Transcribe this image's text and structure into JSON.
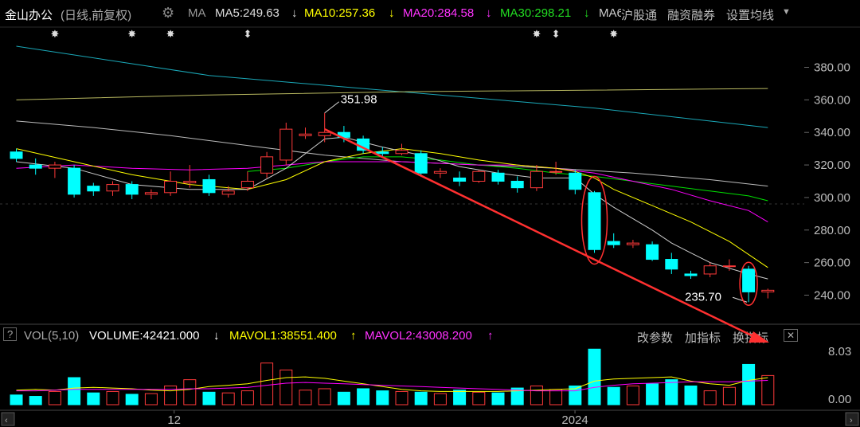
{
  "header": {
    "stock_name": "金山办公",
    "mode": "(日线,前复权)",
    "settings_icon": "gear-icon",
    "ma_prefix": "MA",
    "ma5": "MA5:249.63",
    "ma10": "MA10:257.36",
    "ma20": "MA20:284.58",
    "ma30": "MA30:298.21",
    "ma60": "MA6",
    "ma_arrow": "↓",
    "btn_hgt": "沪股通",
    "btn_margin": "融资融券",
    "btn_ma_settings": "设置均线",
    "dropdown_icon": "caret-down-icon"
  },
  "vol_header": {
    "help": "?",
    "label": "VOL(5,10)",
    "volume": "VOLUME:42421.000",
    "volume_arrow": "↓",
    "mavol1": "MAVOL1:38551.400",
    "mavol1_arrow": "↑",
    "mavol2": "MAVOL2:43008.200",
    "mavol2_arrow": "↑",
    "btn_params": "改参数",
    "btn_add": "加指标",
    "btn_switch": "换指标",
    "close": "✕"
  },
  "annotations": {
    "high_label": "351.98",
    "low_label": "235.70"
  },
  "x_axis": {
    "labels": [
      "12",
      "2024"
    ]
  },
  "vol_axis": {
    "top": "8.03",
    "bottom": "0.00"
  },
  "colors": {
    "up": "#ff3a3a",
    "down": "#00ffff",
    "ma5": "#cccccc",
    "ma10": "#ffff00",
    "ma20": "#ff00ff",
    "ma30": "#00e000",
    "ma60": "#20b0c0",
    "trend": "#ff3030"
  },
  "chart_data": {
    "type": "candlestick",
    "y_ticks": [
      240,
      260,
      280,
      300,
      320,
      340,
      360,
      380
    ],
    "ylim": [
      228,
      392
    ],
    "candles": [
      {
        "o": 328,
        "c": 324,
        "h": 330,
        "l": 322
      },
      {
        "o": 320,
        "c": 318,
        "h": 324,
        "l": 314
      },
      {
        "o": 318,
        "c": 320,
        "h": 322,
        "l": 312
      },
      {
        "o": 318,
        "c": 302,
        "h": 320,
        "l": 300
      },
      {
        "o": 307,
        "c": 304,
        "h": 309,
        "l": 301
      },
      {
        "o": 304,
        "c": 308,
        "h": 310,
        "l": 301
      },
      {
        "o": 308,
        "c": 302,
        "h": 310,
        "l": 299
      },
      {
        "o": 302,
        "c": 303,
        "h": 305,
        "l": 299
      },
      {
        "o": 303,
        "c": 310,
        "h": 316,
        "l": 301
      },
      {
        "o": 309,
        "c": 310,
        "h": 320,
        "l": 306
      },
      {
        "o": 311,
        "c": 303,
        "h": 314,
        "l": 301
      },
      {
        "o": 302,
        "c": 304,
        "h": 307,
        "l": 300
      },
      {
        "o": 306,
        "c": 310,
        "h": 316,
        "l": 304
      },
      {
        "o": 315,
        "c": 325,
        "h": 328,
        "l": 312
      },
      {
        "o": 323,
        "c": 342,
        "h": 346,
        "l": 320
      },
      {
        "o": 338,
        "c": 339,
        "h": 343,
        "l": 336
      },
      {
        "o": 338,
        "c": 340,
        "h": 351.98,
        "l": 334
      },
      {
        "o": 340,
        "c": 337,
        "h": 344,
        "l": 334
      },
      {
        "o": 336,
        "c": 329,
        "h": 338,
        "l": 327
      },
      {
        "o": 328,
        "c": 327,
        "h": 331,
        "l": 325
      },
      {
        "o": 327,
        "c": 329,
        "h": 333,
        "l": 326
      },
      {
        "o": 327,
        "c": 315,
        "h": 329,
        "l": 313
      },
      {
        "o": 315,
        "c": 316,
        "h": 318,
        "l": 312
      },
      {
        "o": 312,
        "c": 310,
        "h": 316,
        "l": 307
      },
      {
        "o": 310,
        "c": 316,
        "h": 317,
        "l": 309
      },
      {
        "o": 315,
        "c": 310,
        "h": 317,
        "l": 308
      },
      {
        "o": 310,
        "c": 306,
        "h": 313,
        "l": 303
      },
      {
        "o": 306,
        "c": 316,
        "h": 320,
        "l": 304
      },
      {
        "o": 316,
        "c": 316,
        "h": 322,
        "l": 314
      },
      {
        "o": 315,
        "c": 305,
        "h": 317,
        "l": 302
      },
      {
        "o": 303,
        "c": 268,
        "h": 304,
        "l": 266
      },
      {
        "o": 273,
        "c": 271,
        "h": 278,
        "l": 269
      },
      {
        "o": 271,
        "c": 272,
        "h": 274,
        "l": 269
      },
      {
        "o": 271,
        "c": 262,
        "h": 273,
        "l": 261
      },
      {
        "o": 262,
        "c": 256,
        "h": 266,
        "l": 253
      },
      {
        "o": 253,
        "c": 252,
        "h": 255,
        "l": 250
      },
      {
        "o": 253,
        "c": 258,
        "h": 260,
        "l": 251
      },
      {
        "o": 258,
        "c": 258,
        "h": 262,
        "l": 255
      },
      {
        "o": 256,
        "c": 242,
        "h": 258,
        "l": 235.7
      },
      {
        "o": 242,
        "c": 243,
        "h": 244,
        "l": 238
      }
    ],
    "volume": [
      1.4,
      1.2,
      1.9,
      3.9,
      1.7,
      1.9,
      1.5,
      1.6,
      2.7,
      3.6,
      1.8,
      1.7,
      2.0,
      6.0,
      5.0,
      2.1,
      2.3,
      1.8,
      2.3,
      2.0,
      1.9,
      1.8,
      1.6,
      2.1,
      1.8,
      1.7,
      2.4,
      2.7,
      2.2,
      2.7,
      8.0,
      2.5,
      2.7,
      3.0,
      3.6,
      2.7,
      2.0,
      2.5,
      5.8,
      4.2
    ],
    "ma5": [
      [
        0,
        322
      ],
      [
        3,
        318
      ],
      [
        6,
        308
      ],
      [
        9,
        305
      ],
      [
        12,
        305
      ],
      [
        14,
        318
      ],
      [
        16,
        336
      ],
      [
        17,
        337
      ],
      [
        19,
        331
      ],
      [
        21,
        326
      ],
      [
        23,
        319
      ],
      [
        25,
        315
      ],
      [
        27,
        312
      ],
      [
        29,
        312
      ],
      [
        30,
        302
      ],
      [
        31,
        294
      ],
      [
        33,
        280
      ],
      [
        34,
        272
      ],
      [
        35,
        266
      ],
      [
        36,
        260
      ],
      [
        38,
        253
      ],
      [
        39,
        250
      ]
    ],
    "ma10": [
      [
        0,
        330
      ],
      [
        3,
        322
      ],
      [
        6,
        314
      ],
      [
        9,
        308
      ],
      [
        12,
        305
      ],
      [
        14,
        311
      ],
      [
        16,
        322
      ],
      [
        18,
        327
      ],
      [
        20,
        330
      ],
      [
        22,
        327
      ],
      [
        24,
        323
      ],
      [
        26,
        320
      ],
      [
        28,
        318
      ],
      [
        29,
        316
      ],
      [
        30,
        312
      ],
      [
        31,
        305
      ],
      [
        33,
        295
      ],
      [
        35,
        285
      ],
      [
        37,
        273
      ],
      [
        39,
        257
      ]
    ],
    "ma20": [
      [
        0,
        318
      ],
      [
        3,
        320
      ],
      [
        6,
        318
      ],
      [
        9,
        317
      ],
      [
        12,
        318
      ],
      [
        14,
        320
      ],
      [
        16,
        322
      ],
      [
        18,
        322
      ],
      [
        20,
        322
      ],
      [
        22,
        321
      ],
      [
        24,
        320
      ],
      [
        26,
        320
      ],
      [
        28,
        318
      ],
      [
        30,
        315
      ],
      [
        32,
        310
      ],
      [
        34,
        305
      ],
      [
        36,
        298
      ],
      [
        38,
        292
      ],
      [
        39,
        285
      ]
    ],
    "ma30": [
      [
        12,
        316
      ],
      [
        14,
        318
      ],
      [
        16,
        322
      ],
      [
        18,
        325
      ],
      [
        20,
        325
      ],
      [
        22,
        323
      ],
      [
        24,
        320
      ],
      [
        26,
        318
      ],
      [
        28,
        315
      ],
      [
        30,
        313
      ],
      [
        32,
        310
      ],
      [
        34,
        307
      ],
      [
        36,
        304
      ],
      [
        38,
        301
      ],
      [
        39,
        298
      ]
    ],
    "ma60": [
      [
        0,
        347
      ],
      [
        4,
        343
      ],
      [
        8,
        338
      ],
      [
        12,
        332
      ],
      [
        16,
        326
      ],
      [
        20,
        322
      ],
      [
        24,
        320
      ],
      [
        28,
        318
      ],
      [
        32,
        315
      ],
      [
        36,
        311
      ],
      [
        39,
        307
      ]
    ],
    "ma_long1": [
      [
        0,
        393
      ],
      [
        10,
        375
      ],
      [
        20,
        365
      ],
      [
        30,
        355
      ],
      [
        39,
        343
      ]
    ],
    "ma_long2": [
      [
        0,
        360
      ],
      [
        10,
        363
      ],
      [
        20,
        365
      ],
      [
        30,
        366
      ],
      [
        39,
        367
      ]
    ],
    "mavol1": [
      2.1,
      2.2,
      2.1,
      2.4,
      2.5,
      2.4,
      2.3,
      2.1,
      2.0,
      2.2,
      2.6,
      2.8,
      3.0,
      3.5,
      3.9,
      4.0,
      3.8,
      3.4,
      3.0,
      2.6,
      2.2,
      2.0,
      1.9,
      1.9,
      1.9,
      1.9,
      2.0,
      2.1,
      2.2,
      2.3,
      3.4,
      3.7,
      3.8,
      3.9,
      4.0,
      3.4,
      3.0,
      2.8,
      3.5,
      3.9
    ],
    "mavol2": [
      2.0,
      2.0,
      2.1,
      2.2,
      2.2,
      2.2,
      2.2,
      2.2,
      2.2,
      2.3,
      2.3,
      2.4,
      2.5,
      2.8,
      3.1,
      3.2,
      3.1,
      3.0,
      2.9,
      2.8,
      2.7,
      2.6,
      2.5,
      2.4,
      2.3,
      2.2,
      2.1,
      2.0,
      2.0,
      2.0,
      2.5,
      2.8,
      3.0,
      3.1,
      3.2,
      3.3,
      3.3,
      3.3,
      3.4,
      3.5
    ]
  }
}
